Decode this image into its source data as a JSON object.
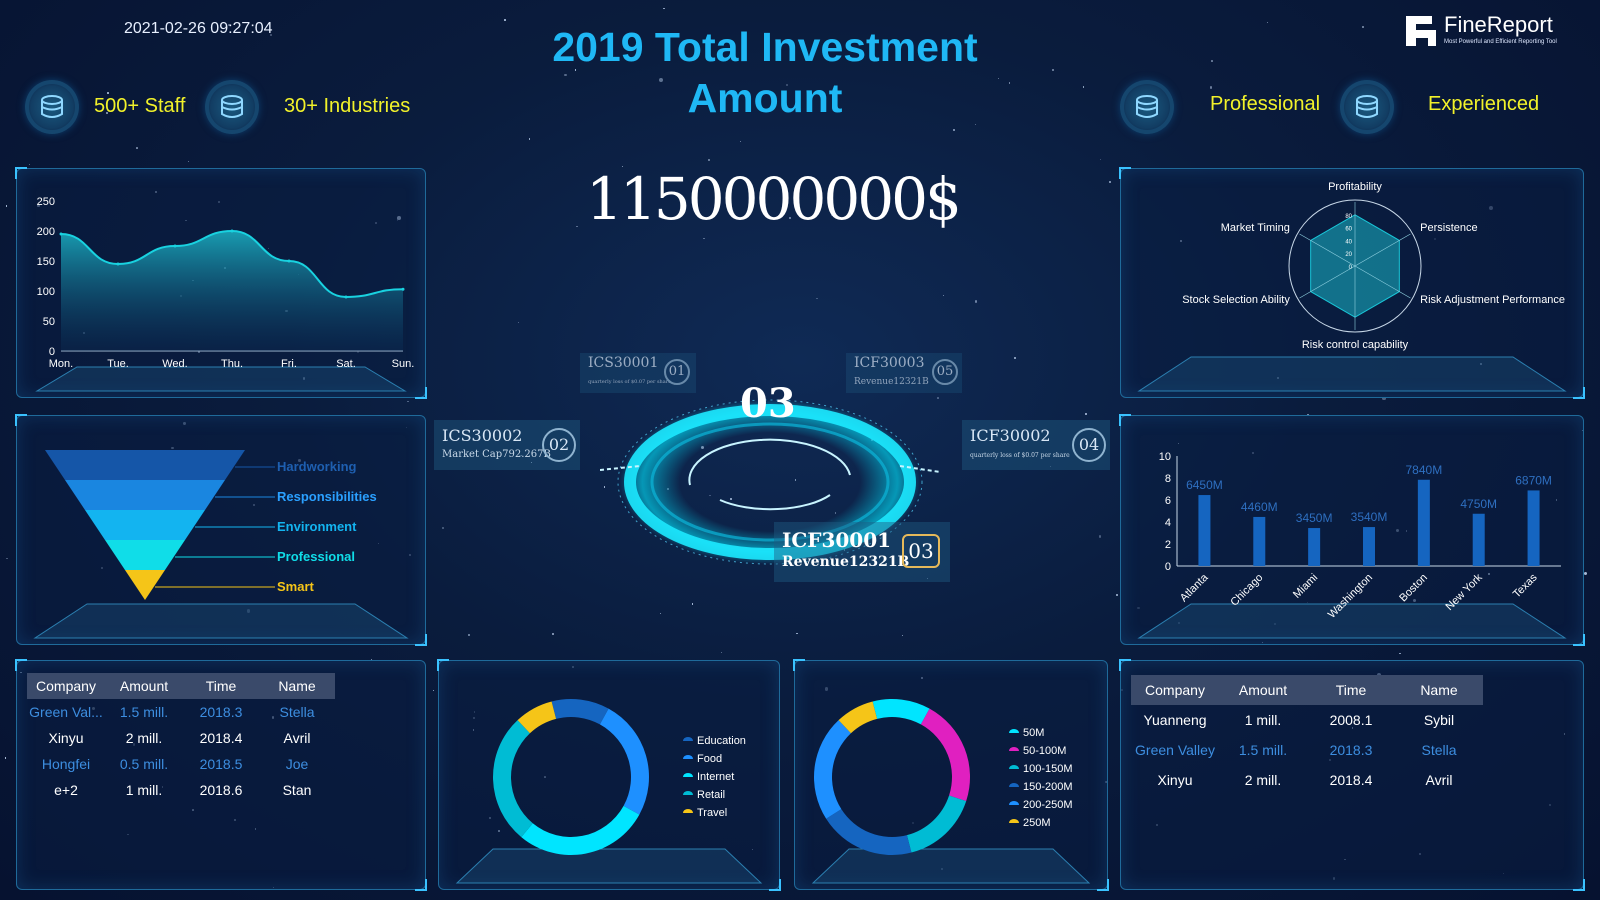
{
  "header": {
    "datetime": "2021-02-26 09:27:04",
    "title_line1": "2019 Total Investment",
    "title_line2": "Amount",
    "logo_text": "FineReport",
    "logo_subtitle": "Most Powerful and Efficient Reporting Tool"
  },
  "features": [
    {
      "label": "500+ Staff",
      "icon": "database-icon"
    },
    {
      "label": "30+ Industries",
      "icon": "database-icon"
    },
    {
      "label": "Professional",
      "icon": "database-icon"
    },
    {
      "label": "Experienced",
      "icon": "database-icon"
    }
  ],
  "total_amount": "1150000000$",
  "hub": {
    "center_number": "03",
    "nodes": [
      {
        "code": "ICS30001",
        "sub": "quarterly loss of $0.07 per share",
        "num": "01"
      },
      {
        "code": "ICS30002",
        "sub": "Market Cap792.267B",
        "num": "02"
      },
      {
        "code": "ICF30001",
        "sub": "Revenue12321B",
        "num": "03"
      },
      {
        "code": "ICF30002",
        "sub": "quarterly loss of $0.07 per share",
        "num": "04"
      },
      {
        "code": "ICF30003",
        "sub": "Revenue12321B",
        "num": "05"
      }
    ]
  },
  "left_table": {
    "headers": [
      "Company",
      "Amount",
      "Time",
      "Name"
    ],
    "rows": [
      [
        "Green Val...",
        "1.5 mill.",
        "2018.3",
        "Stella"
      ],
      [
        "Xinyu",
        "2 mill.",
        "2018.4",
        "Avril"
      ],
      [
        "Hongfei",
        "0.5 mill.",
        "2018.5",
        "Joe"
      ],
      [
        "e+2",
        "1 mill.",
        "2018.6",
        "Stan"
      ]
    ]
  },
  "right_table": {
    "headers": [
      "Company",
      "Amount",
      "Time",
      "Name"
    ],
    "rows": [
      [
        "Yuanneng",
        "1 mill.",
        "2008.1",
        "Sybil"
      ],
      [
        "Green Valley",
        "1.5 mill.",
        "2018.3",
        "Stella"
      ],
      [
        "Xinyu",
        "2 mill.",
        "2018.4",
        "Avril"
      ]
    ]
  },
  "colors": {
    "accent": "#1fb8f5",
    "feature": "#f2f22a",
    "cyan": "#19c6d8",
    "bar": "#1565c0"
  },
  "chart_data": [
    {
      "type": "area",
      "categories": [
        "Mon.",
        "Tue.",
        "Wed.",
        "Thu.",
        "Fri.",
        "Sat.",
        "Sun."
      ],
      "values": [
        195,
        145,
        175,
        200,
        150,
        90,
        103
      ],
      "ylim": [
        0,
        250
      ],
      "yticks": [
        0,
        50,
        100,
        150,
        200,
        250
      ],
      "title": "",
      "xlabel": "",
      "ylabel": ""
    },
    {
      "type": "funnel",
      "categories": [
        "Hardworking",
        "Responsibilities",
        "Environment",
        "Professional",
        "Smart"
      ],
      "colors": [
        "#1556a8",
        "#1a86e0",
        "#13b4f0",
        "#10dde8",
        "#f5c518"
      ]
    },
    {
      "type": "radar",
      "indicators": [
        "Profitability",
        "Persistence",
        "Risk Adjustment Performance",
        "Risk control capability",
        "Stock Selection Ability",
        "Market Timing"
      ],
      "ticks": [
        "0",
        "20",
        "40",
        "60",
        "80"
      ],
      "max": 100,
      "values": [
        80,
        80,
        80,
        80,
        80,
        80
      ]
    },
    {
      "type": "bar",
      "categories": [
        "Atlanta",
        "Chicago",
        "Miami",
        "Washington",
        "Boston",
        "New York",
        "Texas"
      ],
      "values": [
        6.45,
        4.46,
        3.45,
        3.54,
        7.84,
        4.75,
        6.87
      ],
      "labels": [
        "6450M",
        "4460M",
        "3450M",
        "3540M",
        "7840M",
        "4750M",
        "6870M"
      ],
      "ylim": [
        0,
        10
      ],
      "yticks": [
        0,
        2,
        4,
        6,
        8,
        10
      ]
    },
    {
      "type": "pie",
      "categories": [
        "Education",
        "Food",
        "Internet",
        "Retail",
        "Travel"
      ],
      "values": [
        12,
        25,
        28,
        27,
        8
      ],
      "colors": [
        "#1565c0",
        "#1e90ff",
        "#00e5ff",
        "#00bcd4",
        "#f5c518"
      ]
    },
    {
      "type": "pie",
      "categories": [
        "50M",
        "50-100M",
        "100-150M",
        "150-200M",
        "200-250M",
        "250M"
      ],
      "values": [
        12,
        22,
        16,
        20,
        22,
        8
      ],
      "colors": [
        "#00e5ff",
        "#e020c0",
        "#00bcd4",
        "#1565c0",
        "#1e90ff",
        "#f5c518"
      ]
    }
  ]
}
